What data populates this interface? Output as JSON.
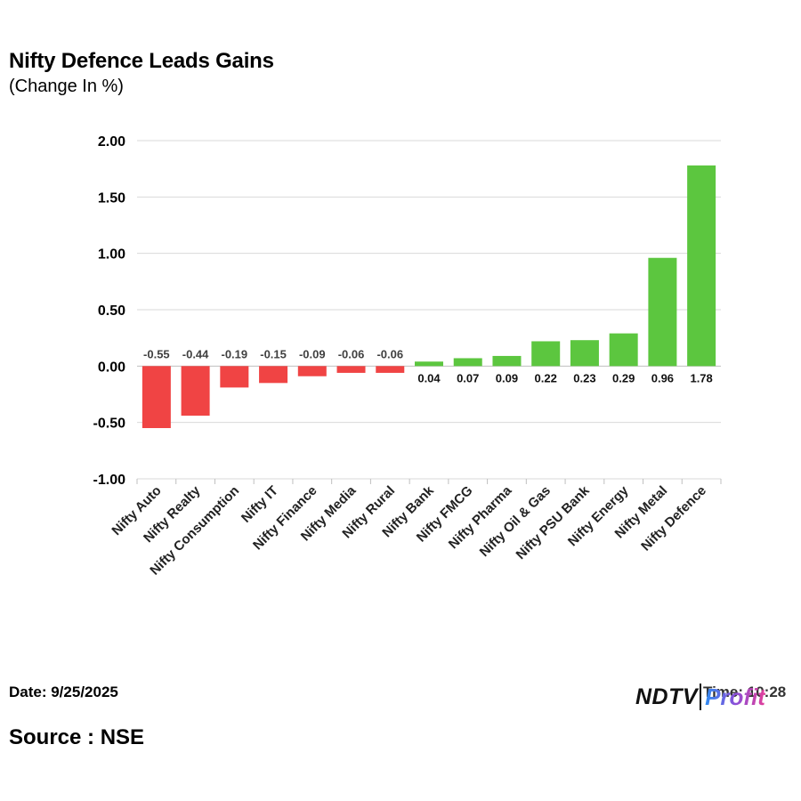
{
  "header": {
    "title": "Nifty Defence Leads Gains",
    "subtitle": "(Change In %)"
  },
  "footer": {
    "date": "Date: 9/25/2025",
    "source": "Source : NSE",
    "time": "Time: 10:28",
    "logo_left": "NDTV",
    "logo_right": "Profit"
  },
  "colors": {
    "positive": "#5cc63f",
    "negative": "#f04444",
    "grid": "#d9d9d9",
    "axis": "#bfbfbf"
  },
  "chart_data": {
    "type": "bar",
    "title": "Nifty Defence Leads Gains",
    "subtitle": "(Change In %)",
    "categories": [
      "Nifty Auto",
      "Nifty Realty",
      "Nifty Consumption",
      "Nifty IT",
      "Nifty Finance",
      "Nifty Media",
      "Nifty Rural",
      "Nifty Bank",
      "Nifty FMCG",
      "Nifty Pharma",
      "Nifty Oil & Gas",
      "Nifty PSU Bank",
      "Nifty Energy",
      "Nifty Metal",
      "Nifty Defence"
    ],
    "values": [
      -0.55,
      -0.44,
      -0.19,
      -0.15,
      -0.09,
      -0.06,
      -0.06,
      0.04,
      0.07,
      0.09,
      0.22,
      0.23,
      0.29,
      0.96,
      1.78
    ],
    "data_labels": [
      "-0.55",
      "-0.44",
      "-0.19",
      "-0.15",
      "-0.09",
      "-0.06",
      "-0.06",
      "0.04",
      "0.07",
      "0.09",
      "0.22",
      "0.23",
      "0.29",
      "0.96",
      "1.78"
    ],
    "yticks": [
      "2.00",
      "1.50",
      "1.00",
      "0.50",
      "0.00",
      "-0.50",
      "-1.00"
    ],
    "ytick_values": [
      2.0,
      1.5,
      1.0,
      0.5,
      0.0,
      -0.5,
      -1.0
    ],
    "ylim": [
      -1.0,
      2.0
    ],
    "xlabel": "",
    "ylabel": "",
    "grid": true,
    "legend": "none"
  }
}
